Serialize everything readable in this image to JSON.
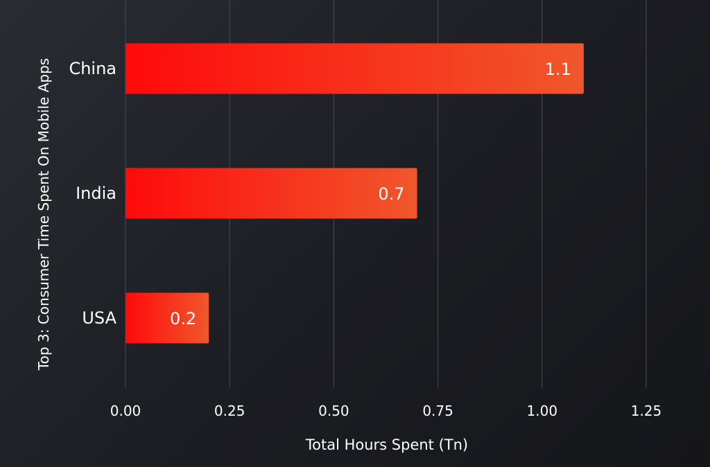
{
  "chart_data": {
    "type": "bar",
    "orientation": "horizontal",
    "categories": [
      "China",
      "India",
      "USA"
    ],
    "values": [
      1.1,
      0.7,
      0.2
    ],
    "data_labels": [
      "1.1",
      "0.7",
      "0.2"
    ],
    "xlabel": "Total Hours Spent (Tn)",
    "ylabel": "Top 3: Consumer Time Spent On Mobile Apps",
    "xlim": [
      0,
      1.25
    ],
    "x_ticks": [
      "0.00",
      "0.25",
      "0.50",
      "0.75",
      "1.00",
      "1.25"
    ],
    "grid": "vertical",
    "colors": {
      "bar_start": "#ff0a0a",
      "bar_end": "#f0572c",
      "text": "#ffffff",
      "grid": "#4a4c52"
    }
  }
}
